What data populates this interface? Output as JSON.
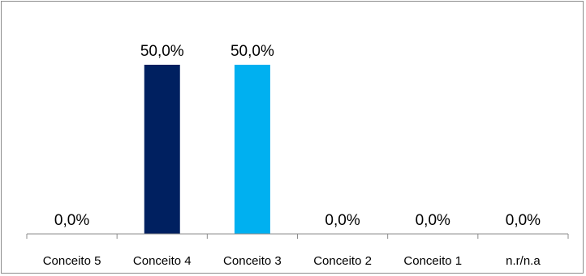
{
  "chart_data": {
    "type": "bar",
    "title": "",
    "xlabel": "",
    "ylabel": "",
    "categories": [
      "Conceito 5",
      "Conceito 4",
      "Conceito 3",
      "Conceito 2",
      "Conceito 1",
      "n.r/n.a"
    ],
    "values": [
      0.0,
      50.0,
      50.0,
      0.0,
      0.0,
      0.0
    ],
    "data_labels": [
      "0,0%",
      "50,0%",
      "50,0%",
      "0,0%",
      "0,0%",
      "0,0%"
    ],
    "unit": "%",
    "ylim": [
      0,
      50
    ],
    "grid": false,
    "legend": "none",
    "bar_colors": [
      "#002060",
      "#002060",
      "#00B0F0",
      "#002060",
      "#002060",
      "#002060"
    ],
    "axis_color": "#8c8c8c"
  }
}
